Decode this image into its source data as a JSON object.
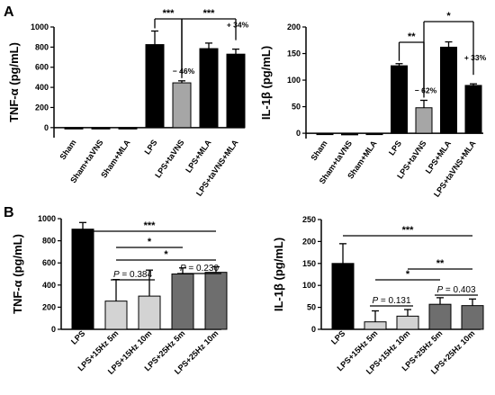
{
  "chart_data": [
    {
      "type": "bar",
      "panel": "A",
      "ylabel": "TNF-α (pg/mL)",
      "ylim": [
        -100,
        1000
      ],
      "yticks": [
        0,
        200,
        400,
        600,
        800,
        1000
      ],
      "categories": [
        "Sham",
        "Sham+taVNS",
        "Sham+MLA",
        "LPS",
        "LPS+taVNS",
        "LPS+MLA",
        "LPS+taVNS+MLA"
      ],
      "values": [
        -5,
        -5,
        -5,
        825,
        445,
        785,
        730
      ],
      "errors": [
        0,
        0,
        0,
        135,
        20,
        55,
        50
      ],
      "colors": [
        "#000000",
        "#000000",
        "#000000",
        "#000000",
        "#a6a6a6",
        "#000000",
        "#000000"
      ],
      "significance": [
        {
          "from": 3,
          "to": 4,
          "label": "***"
        },
        {
          "from": 4,
          "to": 6,
          "label": "***"
        }
      ],
      "annotations": [
        {
          "bar": 4,
          "text": "− 46%"
        },
        {
          "bar": 6,
          "text": "+ 34%"
        }
      ]
    },
    {
      "type": "bar",
      "panel": "A",
      "ylabel": "IL-1β (pg/mL)",
      "ylim": [
        -10,
        200
      ],
      "yticks": [
        0,
        50,
        100,
        150,
        200
      ],
      "categories": [
        "Sham",
        "Sham+taVNS",
        "Sham+MLA",
        "LPS",
        "LPS+taVNS",
        "LPS+MLA",
        "LPS+taVNS+MLA"
      ],
      "values": [
        -2,
        -3,
        -2,
        127,
        48,
        162,
        90
      ],
      "errors": [
        0,
        0,
        0,
        4,
        14,
        10,
        3
      ],
      "colors": [
        "#000000",
        "#000000",
        "#000000",
        "#000000",
        "#a6a6a6",
        "#000000",
        "#000000"
      ],
      "significance": [
        {
          "from": 3,
          "to": 4,
          "label": "**"
        },
        {
          "from": 4,
          "to": 6,
          "label": "*"
        }
      ],
      "annotations": [
        {
          "bar": 4,
          "text": "− 62%"
        },
        {
          "bar": 6,
          "text": "+ 33%"
        }
      ]
    },
    {
      "type": "bar",
      "panel": "B",
      "ylabel": "TNF-α (pg/mL)",
      "ylim": [
        0,
        1000
      ],
      "yticks": [
        0,
        200,
        400,
        600,
        800,
        1000
      ],
      "categories": [
        "LPS",
        "LPS+15Hz 5m",
        "LPS+15Hz 10m",
        "LPS+25Hz 5m",
        "LPS+25Hz 10m"
      ],
      "values": [
        905,
        255,
        300,
        500,
        515
      ],
      "errors": [
        60,
        195,
        235,
        55,
        50
      ],
      "colors": [
        "#000000",
        "#d3d3d3",
        "#d3d3d3",
        "#6e6e6e",
        "#6e6e6e"
      ],
      "significance": [
        {
          "from": 0,
          "to": 4,
          "label": "***"
        },
        {
          "from": 1,
          "to": 4,
          "label": "*"
        },
        {
          "from": 1,
          "to": 3,
          "label": "*"
        }
      ],
      "pvalues": [
        {
          "from": 1,
          "to": 2,
          "label": "P = 0.384"
        },
        {
          "from": 3,
          "to": 4,
          "label": "P = 0.230"
        }
      ]
    },
    {
      "type": "bar",
      "panel": "B",
      "ylabel": "IL-1β (pg/mL)",
      "ylim": [
        0,
        250
      ],
      "yticks": [
        0,
        50,
        100,
        150,
        200,
        250
      ],
      "categories": [
        "LPS",
        "LPS+15Hz 5m",
        "LPS+15Hz 10m",
        "LPS+25Hz 5m",
        "LPS+25Hz 10m"
      ],
      "values": [
        150,
        17,
        30,
        57,
        54
      ],
      "errors": [
        45,
        25,
        15,
        15,
        15
      ],
      "colors": [
        "#000000",
        "#d3d3d3",
        "#d3d3d3",
        "#6e6e6e",
        "#6e6e6e"
      ],
      "significance": [
        {
          "from": 0,
          "to": 4,
          "label": "***"
        },
        {
          "from": 2,
          "to": 4,
          "label": "**"
        },
        {
          "from": 1,
          "to": 3,
          "label": "*"
        }
      ],
      "pvalues": [
        {
          "from": 1,
          "to": 2,
          "label": "P = 0.131"
        },
        {
          "from": 3,
          "to": 4,
          "label": "P = 0.403"
        }
      ]
    }
  ]
}
